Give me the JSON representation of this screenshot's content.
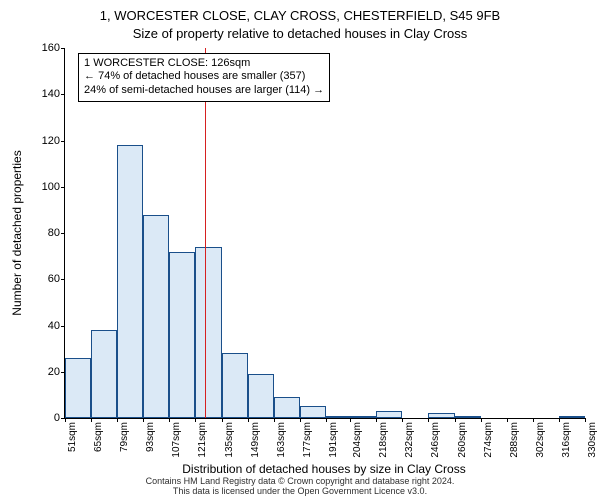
{
  "title_line1": "1, WORCESTER CLOSE, CLAY CROSS, CHESTERFIELD, S45 9FB",
  "title_line2": "Size of property relative to detached houses in Clay Cross",
  "y_axis_label": "Number of detached properties",
  "x_axis_label": "Distribution of detached houses by size in Clay Cross",
  "footer_text": "Contains HM Land Registry data © Crown copyright and database right 2024.\nThis data is licensed under the Open Government Licence v3.0.",
  "chart": {
    "type": "histogram",
    "ylim": [
      0,
      160
    ],
    "yticks": [
      0,
      20,
      40,
      60,
      80,
      100,
      120,
      140,
      160
    ],
    "xticks_labels": [
      "51sqm",
      "65sqm",
      "79sqm",
      "93sqm",
      "107sqm",
      "121sqm",
      "135sqm",
      "149sqm",
      "163sqm",
      "177sqm",
      "191sqm",
      "204sqm",
      "218sqm",
      "232sqm",
      "246sqm",
      "260sqm",
      "274sqm",
      "288sqm",
      "302sqm",
      "316sqm",
      "330sqm"
    ],
    "x_bin_edges": [
      51,
      65,
      79,
      93,
      107,
      121,
      135,
      149,
      163,
      177,
      191,
      204,
      218,
      232,
      246,
      260,
      274,
      288,
      302,
      316,
      330
    ],
    "bar_values": [
      26,
      38,
      118,
      88,
      72,
      74,
      28,
      19,
      9,
      5,
      1,
      1,
      3,
      0,
      2,
      1,
      0,
      0,
      0,
      1
    ],
    "bar_fill_color": "#dbe9f6",
    "bar_border_color": "#1a4f8a",
    "bar_border_width": 1,
    "background_color": "#ffffff",
    "marker_line": {
      "x_value": 126,
      "color": "#d62020",
      "width": 1
    },
    "annotation": {
      "lines": [
        "1 WORCESTER CLOSE: 126sqm",
        "← 74% of detached houses are smaller (357)",
        "24% of semi-detached houses are larger (114) →"
      ],
      "box_x_start_value": 58,
      "box_top_y_value": 158,
      "border_color": "#000000",
      "font_size": 11
    }
  }
}
